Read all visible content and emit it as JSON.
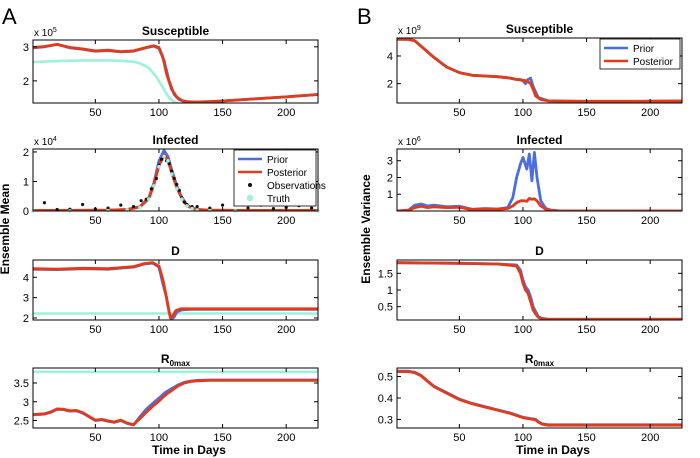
{
  "panel_labels": [
    "A",
    "B"
  ],
  "column_ylabels": [
    "Ensemble Mean",
    "Ensemble Variance"
  ],
  "xlabel": "Time in Days",
  "colors": {
    "prior": "#4a6ee0",
    "posterior": "#e23a1b",
    "observations": "#111111",
    "truth": "#9ff0dc"
  },
  "chart_data": [
    {
      "id": "A1",
      "type": "line",
      "title": "Susceptible",
      "exp": "10^5",
      "xlim": [
        1,
        225
      ],
      "ylim": [
        1.35,
        3.2
      ],
      "xticks": [
        50,
        100,
        150,
        200
      ],
      "yticks": [
        2,
        3
      ],
      "series": [
        {
          "name": "Prior",
          "x": [
            1,
            10,
            20,
            30,
            40,
            50,
            60,
            70,
            80,
            90,
            96,
            100,
            104,
            108,
            112,
            116,
            120,
            130,
            140,
            150,
            175,
            200,
            225
          ],
          "y": [
            2.97,
            3.0,
            3.07,
            2.97,
            2.93,
            2.87,
            2.89,
            2.85,
            2.87,
            2.97,
            3.02,
            2.95,
            2.6,
            2.0,
            1.6,
            1.45,
            1.39,
            1.38,
            1.39,
            1.41,
            1.47,
            1.53,
            1.6
          ]
        },
        {
          "name": "Posterior",
          "x": [
            1,
            10,
            20,
            30,
            40,
            50,
            60,
            70,
            80,
            90,
            96,
            100,
            103,
            106,
            110,
            114,
            118,
            122,
            130,
            140,
            150,
            175,
            200,
            225
          ],
          "y": [
            2.98,
            3.01,
            3.07,
            2.98,
            2.94,
            2.88,
            2.9,
            2.86,
            2.88,
            2.98,
            3.03,
            2.98,
            2.7,
            2.2,
            1.75,
            1.52,
            1.42,
            1.39,
            1.38,
            1.39,
            1.41,
            1.47,
            1.53,
            1.6
          ]
        },
        {
          "name": "Truth",
          "x": [
            1,
            20,
            40,
            60,
            70,
            80,
            86,
            92,
            98,
            104,
            108,
            112,
            116,
            120,
            125,
            140,
            160,
            190,
            225
          ],
          "y": [
            2.55,
            2.58,
            2.6,
            2.6,
            2.59,
            2.56,
            2.5,
            2.38,
            2.12,
            1.75,
            1.5,
            1.38,
            1.33,
            1.3,
            1.28,
            1.27,
            1.28,
            1.3,
            1.33
          ]
        }
      ]
    },
    {
      "id": "A2",
      "type": "line",
      "title": "Infected",
      "exp": "10^4",
      "xlim": [
        1,
        225
      ],
      "ylim": [
        0,
        2.1
      ],
      "xticks": [
        50,
        100,
        150,
        200
      ],
      "yticks": [
        0,
        1,
        2
      ],
      "series": [
        {
          "name": "Prior",
          "x": [
            1,
            30,
            60,
            75,
            85,
            92,
            96,
            100,
            104,
            107,
            110,
            114,
            118,
            122,
            126,
            130,
            140,
            160,
            225
          ],
          "y": [
            0.02,
            0.02,
            0.03,
            0.05,
            0.15,
            0.45,
            0.95,
            1.7,
            2.05,
            1.85,
            1.4,
            0.85,
            0.45,
            0.2,
            0.1,
            0.05,
            0.03,
            0.02,
            0.02
          ]
        },
        {
          "name": "Posterior",
          "x": [
            1,
            30,
            60,
            75,
            85,
            92,
            96,
            100,
            104,
            107,
            110,
            114,
            118,
            122,
            126,
            130,
            140,
            160,
            225
          ],
          "y": [
            0.02,
            0.02,
            0.03,
            0.05,
            0.14,
            0.42,
            0.9,
            1.55,
            1.9,
            1.75,
            1.3,
            0.8,
            0.42,
            0.18,
            0.09,
            0.05,
            0.03,
            0.02,
            0.02
          ]
        },
        {
          "name": "Observations",
          "x": [
            10,
            20,
            30,
            40,
            50,
            60,
            70,
            80,
            86,
            90,
            94,
            98,
            100,
            102,
            104,
            106,
            108,
            110,
            112,
            114,
            116,
            118,
            120,
            122,
            126,
            130,
            140,
            150,
            160,
            170,
            180,
            190,
            200,
            210,
            220
          ],
          "y": [
            0.28,
            0.05,
            0.06,
            0.22,
            0.07,
            0.1,
            0.2,
            0.15,
            0.35,
            0.4,
            0.75,
            1.1,
            1.55,
            1.75,
            1.85,
            1.7,
            1.6,
            1.35,
            1.1,
            0.9,
            0.7,
            0.45,
            0.3,
            0.22,
            0.15,
            0.15,
            0.1,
            0.2,
            0.25,
            0.1,
            0.2,
            0.08,
            0.12,
            0.18,
            0.1
          ]
        },
        {
          "name": "Truth",
          "x": [
            1,
            30,
            60,
            75,
            85,
            92,
            96,
            100,
            104,
            107,
            110,
            114,
            118,
            122,
            126,
            130,
            140,
            160,
            225
          ],
          "y": [
            0.0,
            0.0,
            0.01,
            0.04,
            0.12,
            0.4,
            0.85,
            1.5,
            1.85,
            1.7,
            1.25,
            0.75,
            0.4,
            0.17,
            0.08,
            0.03,
            0.01,
            0.0,
            0.0
          ]
        }
      ]
    },
    {
      "id": "A3",
      "type": "line",
      "title": "D",
      "xlim": [
        1,
        225
      ],
      "ylim": [
        1.9,
        4.85
      ],
      "xticks": [
        50,
        100,
        150,
        200
      ],
      "yticks": [
        2,
        3,
        4
      ],
      "series": [
        {
          "name": "Prior",
          "x": [
            1,
            20,
            40,
            60,
            70,
            80,
            88,
            95,
            100,
            103,
            106,
            108,
            110,
            112,
            114,
            118,
            125,
            150,
            225
          ],
          "y": [
            4.4,
            4.38,
            4.42,
            4.4,
            4.45,
            4.5,
            4.65,
            4.7,
            4.5,
            3.7,
            3.0,
            2.3,
            1.95,
            2.05,
            2.3,
            2.4,
            2.42,
            2.42,
            2.42
          ]
        },
        {
          "name": "Posterior",
          "x": [
            1,
            20,
            40,
            60,
            70,
            80,
            88,
            95,
            100,
            103,
            105,
            107,
            109,
            111,
            113,
            117,
            125,
            150,
            225
          ],
          "y": [
            4.42,
            4.4,
            4.44,
            4.42,
            4.47,
            4.52,
            4.67,
            4.72,
            4.55,
            3.9,
            3.3,
            2.6,
            2.0,
            2.1,
            2.35,
            2.45,
            2.45,
            2.45,
            2.45
          ]
        },
        {
          "name": "Truth",
          "x": [
            1,
            225
          ],
          "y": [
            2.22,
            2.22
          ]
        }
      ]
    },
    {
      "id": "A4",
      "type": "line",
      "title": "R",
      "title_sub": "0max",
      "xlim": [
        1,
        225
      ],
      "ylim": [
        2.3,
        3.9
      ],
      "xticks": [
        50,
        100,
        150,
        200
      ],
      "yticks": [
        2.5,
        3,
        3.5
      ],
      "series": [
        {
          "name": "Prior",
          "x": [
            1,
            10,
            15,
            20,
            25,
            30,
            35,
            40,
            45,
            50,
            55,
            60,
            65,
            70,
            75,
            80,
            85,
            90,
            95,
            100,
            105,
            110,
            115,
            120,
            125,
            130,
            140,
            225
          ],
          "y": [
            2.65,
            2.67,
            2.72,
            2.8,
            2.79,
            2.75,
            2.76,
            2.7,
            2.6,
            2.5,
            2.52,
            2.48,
            2.45,
            2.5,
            2.42,
            2.38,
            2.6,
            2.8,
            2.95,
            3.1,
            3.25,
            3.35,
            3.45,
            3.52,
            3.55,
            3.57,
            3.58,
            3.58
          ]
        },
        {
          "name": "Posterior",
          "x": [
            1,
            10,
            15,
            20,
            25,
            30,
            35,
            40,
            45,
            50,
            55,
            60,
            65,
            70,
            75,
            80,
            85,
            90,
            95,
            100,
            105,
            110,
            115,
            120,
            125,
            130,
            140,
            225
          ],
          "y": [
            2.66,
            2.68,
            2.73,
            2.81,
            2.8,
            2.76,
            2.77,
            2.71,
            2.61,
            2.51,
            2.53,
            2.49,
            2.46,
            2.51,
            2.43,
            2.39,
            2.55,
            2.72,
            2.88,
            3.02,
            3.18,
            3.3,
            3.42,
            3.5,
            3.54,
            3.56,
            3.57,
            3.57
          ]
        },
        {
          "name": "Truth",
          "x": [
            1,
            225
          ],
          "y": [
            3.8,
            3.8
          ]
        }
      ]
    },
    {
      "id": "B1",
      "type": "line",
      "title": "Susceptible",
      "exp": "10^9",
      "xlim": [
        1,
        225
      ],
      "ylim": [
        0.6,
        5.3
      ],
      "xticks": [
        50,
        100,
        150,
        200
      ],
      "yticks": [
        2,
        4
      ],
      "series": [
        {
          "name": "Prior",
          "x": [
            1,
            10,
            15,
            20,
            25,
            30,
            40,
            50,
            60,
            70,
            80,
            90,
            95,
            98,
            100,
            102,
            104,
            106,
            108,
            112,
            120,
            150,
            200,
            225
          ],
          "y": [
            5.2,
            5.2,
            5.1,
            4.7,
            4.3,
            3.9,
            3.2,
            2.8,
            2.6,
            2.55,
            2.5,
            2.4,
            2.3,
            2.3,
            2.2,
            2.0,
            2.3,
            2.4,
            1.8,
            1.0,
            0.75,
            0.7,
            0.72,
            0.74
          ]
        },
        {
          "name": "Posterior",
          "x": [
            1,
            10,
            15,
            20,
            25,
            30,
            40,
            50,
            60,
            70,
            80,
            90,
            95,
            100,
            103,
            106,
            108,
            110,
            114,
            120,
            150,
            200,
            225
          ],
          "y": [
            5.22,
            5.2,
            5.1,
            4.7,
            4.3,
            3.9,
            3.2,
            2.8,
            2.6,
            2.55,
            2.5,
            2.4,
            2.3,
            2.25,
            2.2,
            2.0,
            1.6,
            1.1,
            0.85,
            0.75,
            0.72,
            0.73,
            0.75
          ]
        }
      ]
    },
    {
      "id": "B2",
      "type": "line",
      "title": "Infected",
      "exp": "10^6",
      "xlim": [
        1,
        225
      ],
      "ylim": [
        0,
        3.7
      ],
      "xticks": [
        50,
        100,
        150,
        200
      ],
      "yticks": [
        1,
        2,
        3
      ],
      "series": [
        {
          "name": "Prior",
          "x": [
            1,
            10,
            15,
            20,
            25,
            30,
            40,
            50,
            60,
            70,
            80,
            88,
            92,
            95,
            98,
            100,
            103,
            105,
            107,
            109,
            111,
            114,
            118,
            122,
            130,
            225
          ],
          "y": [
            0.0,
            0.05,
            0.35,
            0.42,
            0.3,
            0.35,
            0.25,
            0.28,
            0.1,
            0.15,
            0.12,
            0.2,
            0.8,
            2.0,
            2.8,
            3.2,
            2.5,
            3.4,
            1.8,
            3.5,
            2.0,
            0.6,
            0.15,
            0.05,
            0.0,
            0.0
          ]
        },
        {
          "name": "Posterior",
          "x": [
            1,
            10,
            15,
            20,
            25,
            30,
            40,
            50,
            60,
            70,
            80,
            88,
            92,
            95,
            98,
            100,
            103,
            105,
            107,
            109,
            111,
            114,
            118,
            122,
            130,
            225
          ],
          "y": [
            0.0,
            0.04,
            0.2,
            0.28,
            0.2,
            0.25,
            0.2,
            0.22,
            0.08,
            0.1,
            0.1,
            0.15,
            0.3,
            0.5,
            0.6,
            0.62,
            0.58,
            0.75,
            0.7,
            0.72,
            0.6,
            0.3,
            0.1,
            0.03,
            0.0,
            0.0
          ]
        }
      ]
    },
    {
      "id": "B3",
      "type": "line",
      "title": "D",
      "xlim": [
        1,
        225
      ],
      "ylim": [
        0.1,
        1.9
      ],
      "xticks": [
        50,
        100,
        150,
        200
      ],
      "yticks": [
        0.5,
        1,
        1.5
      ],
      "series": [
        {
          "name": "Prior",
          "x": [
            1,
            50,
            80,
            95,
            98,
            100,
            102,
            104,
            106,
            108,
            110,
            112,
            115,
            120,
            225
          ],
          "y": [
            1.82,
            1.8,
            1.78,
            1.75,
            1.6,
            1.3,
            1.1,
            1.0,
            0.8,
            0.5,
            0.35,
            0.2,
            0.15,
            0.12,
            0.12
          ]
        },
        {
          "name": "Posterior",
          "x": [
            1,
            50,
            80,
            95,
            98,
            100,
            102,
            104,
            106,
            108,
            110,
            112,
            115,
            120,
            225
          ],
          "y": [
            1.82,
            1.8,
            1.78,
            1.72,
            1.5,
            1.2,
            1.0,
            0.9,
            0.65,
            0.4,
            0.28,
            0.18,
            0.14,
            0.12,
            0.12
          ]
        }
      ]
    },
    {
      "id": "B4",
      "type": "line",
      "title": "R",
      "title_sub": "0max",
      "xlim": [
        1,
        225
      ],
      "ylim": [
        0.26,
        0.54
      ],
      "xticks": [
        50,
        100,
        150,
        200
      ],
      "yticks": [
        0.3,
        0.4,
        0.5
      ],
      "series": [
        {
          "name": "Prior",
          "x": [
            1,
            10,
            15,
            20,
            25,
            30,
            40,
            50,
            60,
            70,
            80,
            90,
            100,
            105,
            110,
            112,
            115,
            120,
            225
          ],
          "y": [
            0.525,
            0.525,
            0.52,
            0.505,
            0.48,
            0.455,
            0.425,
            0.395,
            0.375,
            0.36,
            0.345,
            0.33,
            0.31,
            0.305,
            0.3,
            0.29,
            0.28,
            0.275,
            0.275
          ]
        },
        {
          "name": "Posterior",
          "x": [
            1,
            10,
            15,
            20,
            25,
            30,
            40,
            50,
            60,
            70,
            80,
            90,
            100,
            105,
            110,
            112,
            115,
            120,
            225
          ],
          "y": [
            0.523,
            0.523,
            0.518,
            0.503,
            0.478,
            0.453,
            0.423,
            0.393,
            0.373,
            0.358,
            0.343,
            0.328,
            0.308,
            0.303,
            0.298,
            0.288,
            0.278,
            0.273,
            0.273
          ]
        }
      ]
    }
  ],
  "legends": {
    "A2": [
      "Prior",
      "Posterior",
      "Observations",
      "Truth"
    ],
    "B1": [
      "Prior",
      "Posterior"
    ]
  }
}
